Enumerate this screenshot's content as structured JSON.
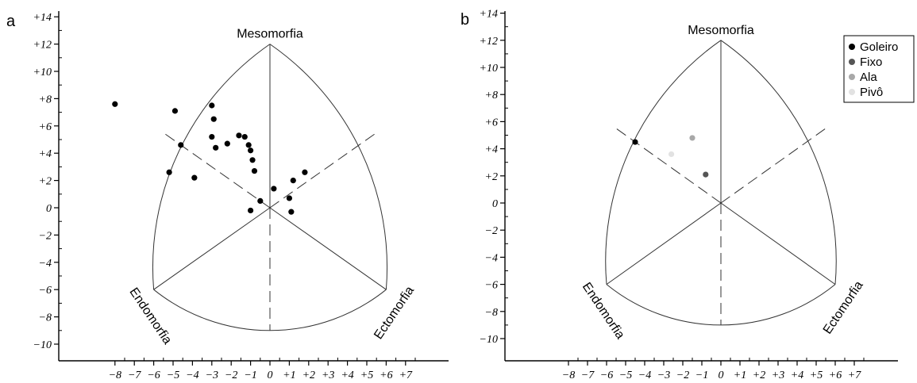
{
  "chart_data": [
    {
      "panel_label": "a",
      "type": "scatter",
      "vertex_labels": {
        "top": "Mesomorfia",
        "left": "Endomorfia",
        "right": "Ectomorfia"
      },
      "xlim": [
        -8,
        7
      ],
      "ylim": [
        -10,
        14
      ],
      "x_ticks": [
        "−8",
        "−7",
        "−6",
        "−5",
        "−4",
        "−3",
        "−2",
        "−1",
        "0",
        "+1",
        "+2",
        "+3",
        "+4",
        "+5",
        "+6",
        "+7"
      ],
      "y_ticks": [
        "+14",
        "+12",
        "+10",
        "+8",
        "+6",
        "+4",
        "+2",
        "0",
        "−2",
        "−4",
        "−6",
        "−8",
        "−10"
      ],
      "series": [
        {
          "color": "#000000",
          "points": [
            [
              -8.0,
              7.6
            ],
            [
              -4.9,
              7.1
            ],
            [
              -4.6,
              4.6
            ],
            [
              -5.2,
              2.6
            ],
            [
              -3.9,
              2.2
            ],
            [
              -3.0,
              7.5
            ],
            [
              -2.9,
              6.5
            ],
            [
              -3.0,
              5.2
            ],
            [
              -2.8,
              4.4
            ],
            [
              -2.2,
              4.7
            ],
            [
              -1.6,
              5.3
            ],
            [
              -1.3,
              5.2
            ],
            [
              -1.1,
              4.6
            ],
            [
              -1.0,
              4.2
            ],
            [
              -0.9,
              3.5
            ],
            [
              -0.8,
              2.7
            ],
            [
              -1.0,
              -0.2
            ],
            [
              -0.5,
              0.5
            ],
            [
              0.2,
              1.4
            ],
            [
              1.0,
              0.7
            ],
            [
              1.1,
              -0.3
            ],
            [
              1.2,
              2.0
            ],
            [
              1.8,
              2.6
            ]
          ]
        }
      ]
    },
    {
      "panel_label": "b",
      "type": "scatter",
      "vertex_labels": {
        "top": "Mesomorfia",
        "left": "Endomorfia",
        "right": "Ectomorfia"
      },
      "xlim": [
        -8,
        7
      ],
      "ylim": [
        -10,
        14
      ],
      "x_ticks": [
        "−8",
        "−7",
        "−6",
        "−5",
        "−4",
        "−3",
        "−2",
        "−1",
        "0",
        "+1",
        "+2",
        "+3",
        "+4",
        "+5",
        "+6",
        "+7"
      ],
      "y_ticks": [
        "+14",
        "+12",
        "+10",
        "+8",
        "+6",
        "+4",
        "+2",
        "0",
        "−2",
        "−4",
        "−6",
        "−8",
        "−10"
      ],
      "legend_position": "top-right",
      "series": [
        {
          "name": "Goleiro",
          "color": "#000000",
          "points": [
            [
              -4.5,
              4.5
            ]
          ]
        },
        {
          "name": "Fixo",
          "color": "#555555",
          "points": [
            [
              -0.8,
              2.1
            ]
          ]
        },
        {
          "name": "Ala",
          "color": "#a8a8a8",
          "points": [
            [
              -1.5,
              4.8
            ]
          ]
        },
        {
          "name": "Pivô",
          "color": "#e2e2e2",
          "points": [
            [
              -2.6,
              3.6
            ]
          ]
        }
      ]
    }
  ]
}
